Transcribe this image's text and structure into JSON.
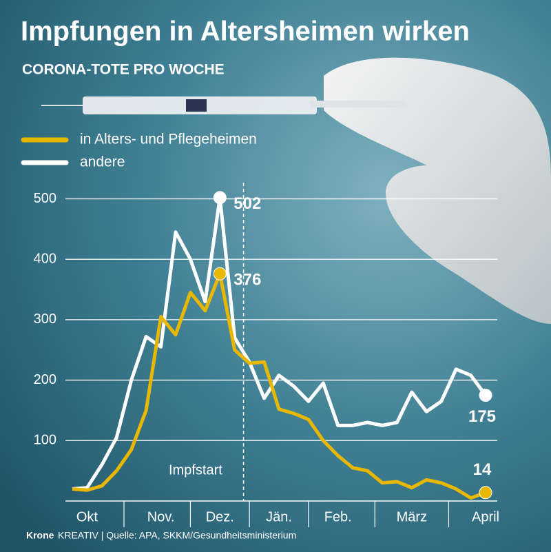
{
  "chart_data": {
    "type": "line",
    "title": "Impfungen in Altersheimen wirken",
    "subtitle": "CORONA-TOTE PRO WOCHE",
    "categories": [
      null,
      "Okt",
      null,
      null,
      null,
      null,
      "Nov.",
      null,
      null,
      null,
      "Dez.",
      null,
      null,
      null,
      "Jän.",
      null,
      null,
      null,
      "Feb.",
      null,
      null,
      null,
      null,
      "März",
      null,
      null,
      null,
      null,
      "April"
    ],
    "series": [
      {
        "name": "andere",
        "color": "#ffffff",
        "values": [
          20,
          22,
          60,
          105,
          200,
          272,
          255,
          445,
          400,
          330,
          502,
          270,
          230,
          170,
          208,
          190,
          165,
          195,
          125,
          125,
          130,
          125,
          130,
          180,
          148,
          165,
          218,
          208,
          175
        ]
      },
      {
        "name": "in Alters- und Pflegeheimen",
        "color": "#e8b800",
        "values": [
          20,
          18,
          25,
          50,
          85,
          150,
          305,
          275,
          345,
          315,
          376,
          250,
          228,
          230,
          152,
          145,
          135,
          100,
          75,
          55,
          50,
          30,
          32,
          22,
          35,
          30,
          20,
          5,
          14
        ]
      }
    ],
    "ylim": [
      0,
      520
    ],
    "yticks": [
      100,
      200,
      300,
      400,
      500
    ],
    "grid": true,
    "annotation": "Impfstart",
    "source_brand": "Krone",
    "source": "KREATIV | Quelle: APA, SKKM/Gesundheitsministerium"
  }
}
